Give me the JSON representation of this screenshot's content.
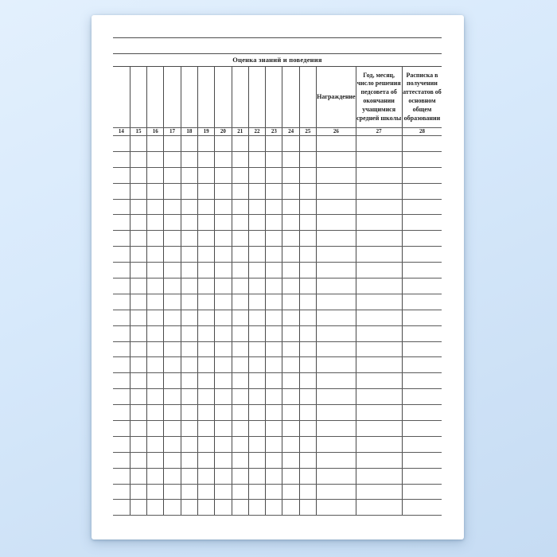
{
  "page": {
    "title": "Оценка знаний и поведения"
  },
  "table": {
    "column_numbers": [
      "14",
      "15",
      "16",
      "17",
      "18",
      "19",
      "20",
      "21",
      "22",
      "23",
      "24",
      "25",
      "26",
      "27",
      "28"
    ],
    "header_labels": [
      "",
      "",
      "",
      "",
      "",
      "",
      "",
      "",
      "",
      "",
      "",
      "",
      "Награждение",
      "Год, месяц, число решения педсовета об окончании учащимися средней школы",
      "Расписка в получении аттестатов об основном общем образовании"
    ],
    "body_row_count": 24
  },
  "colors": {
    "background_top": "#e3f0fd",
    "background_bottom": "#c6dcf3",
    "paper": "#ffffff",
    "grid_line": "#4a4a4a",
    "text": "#1d1d1d"
  }
}
